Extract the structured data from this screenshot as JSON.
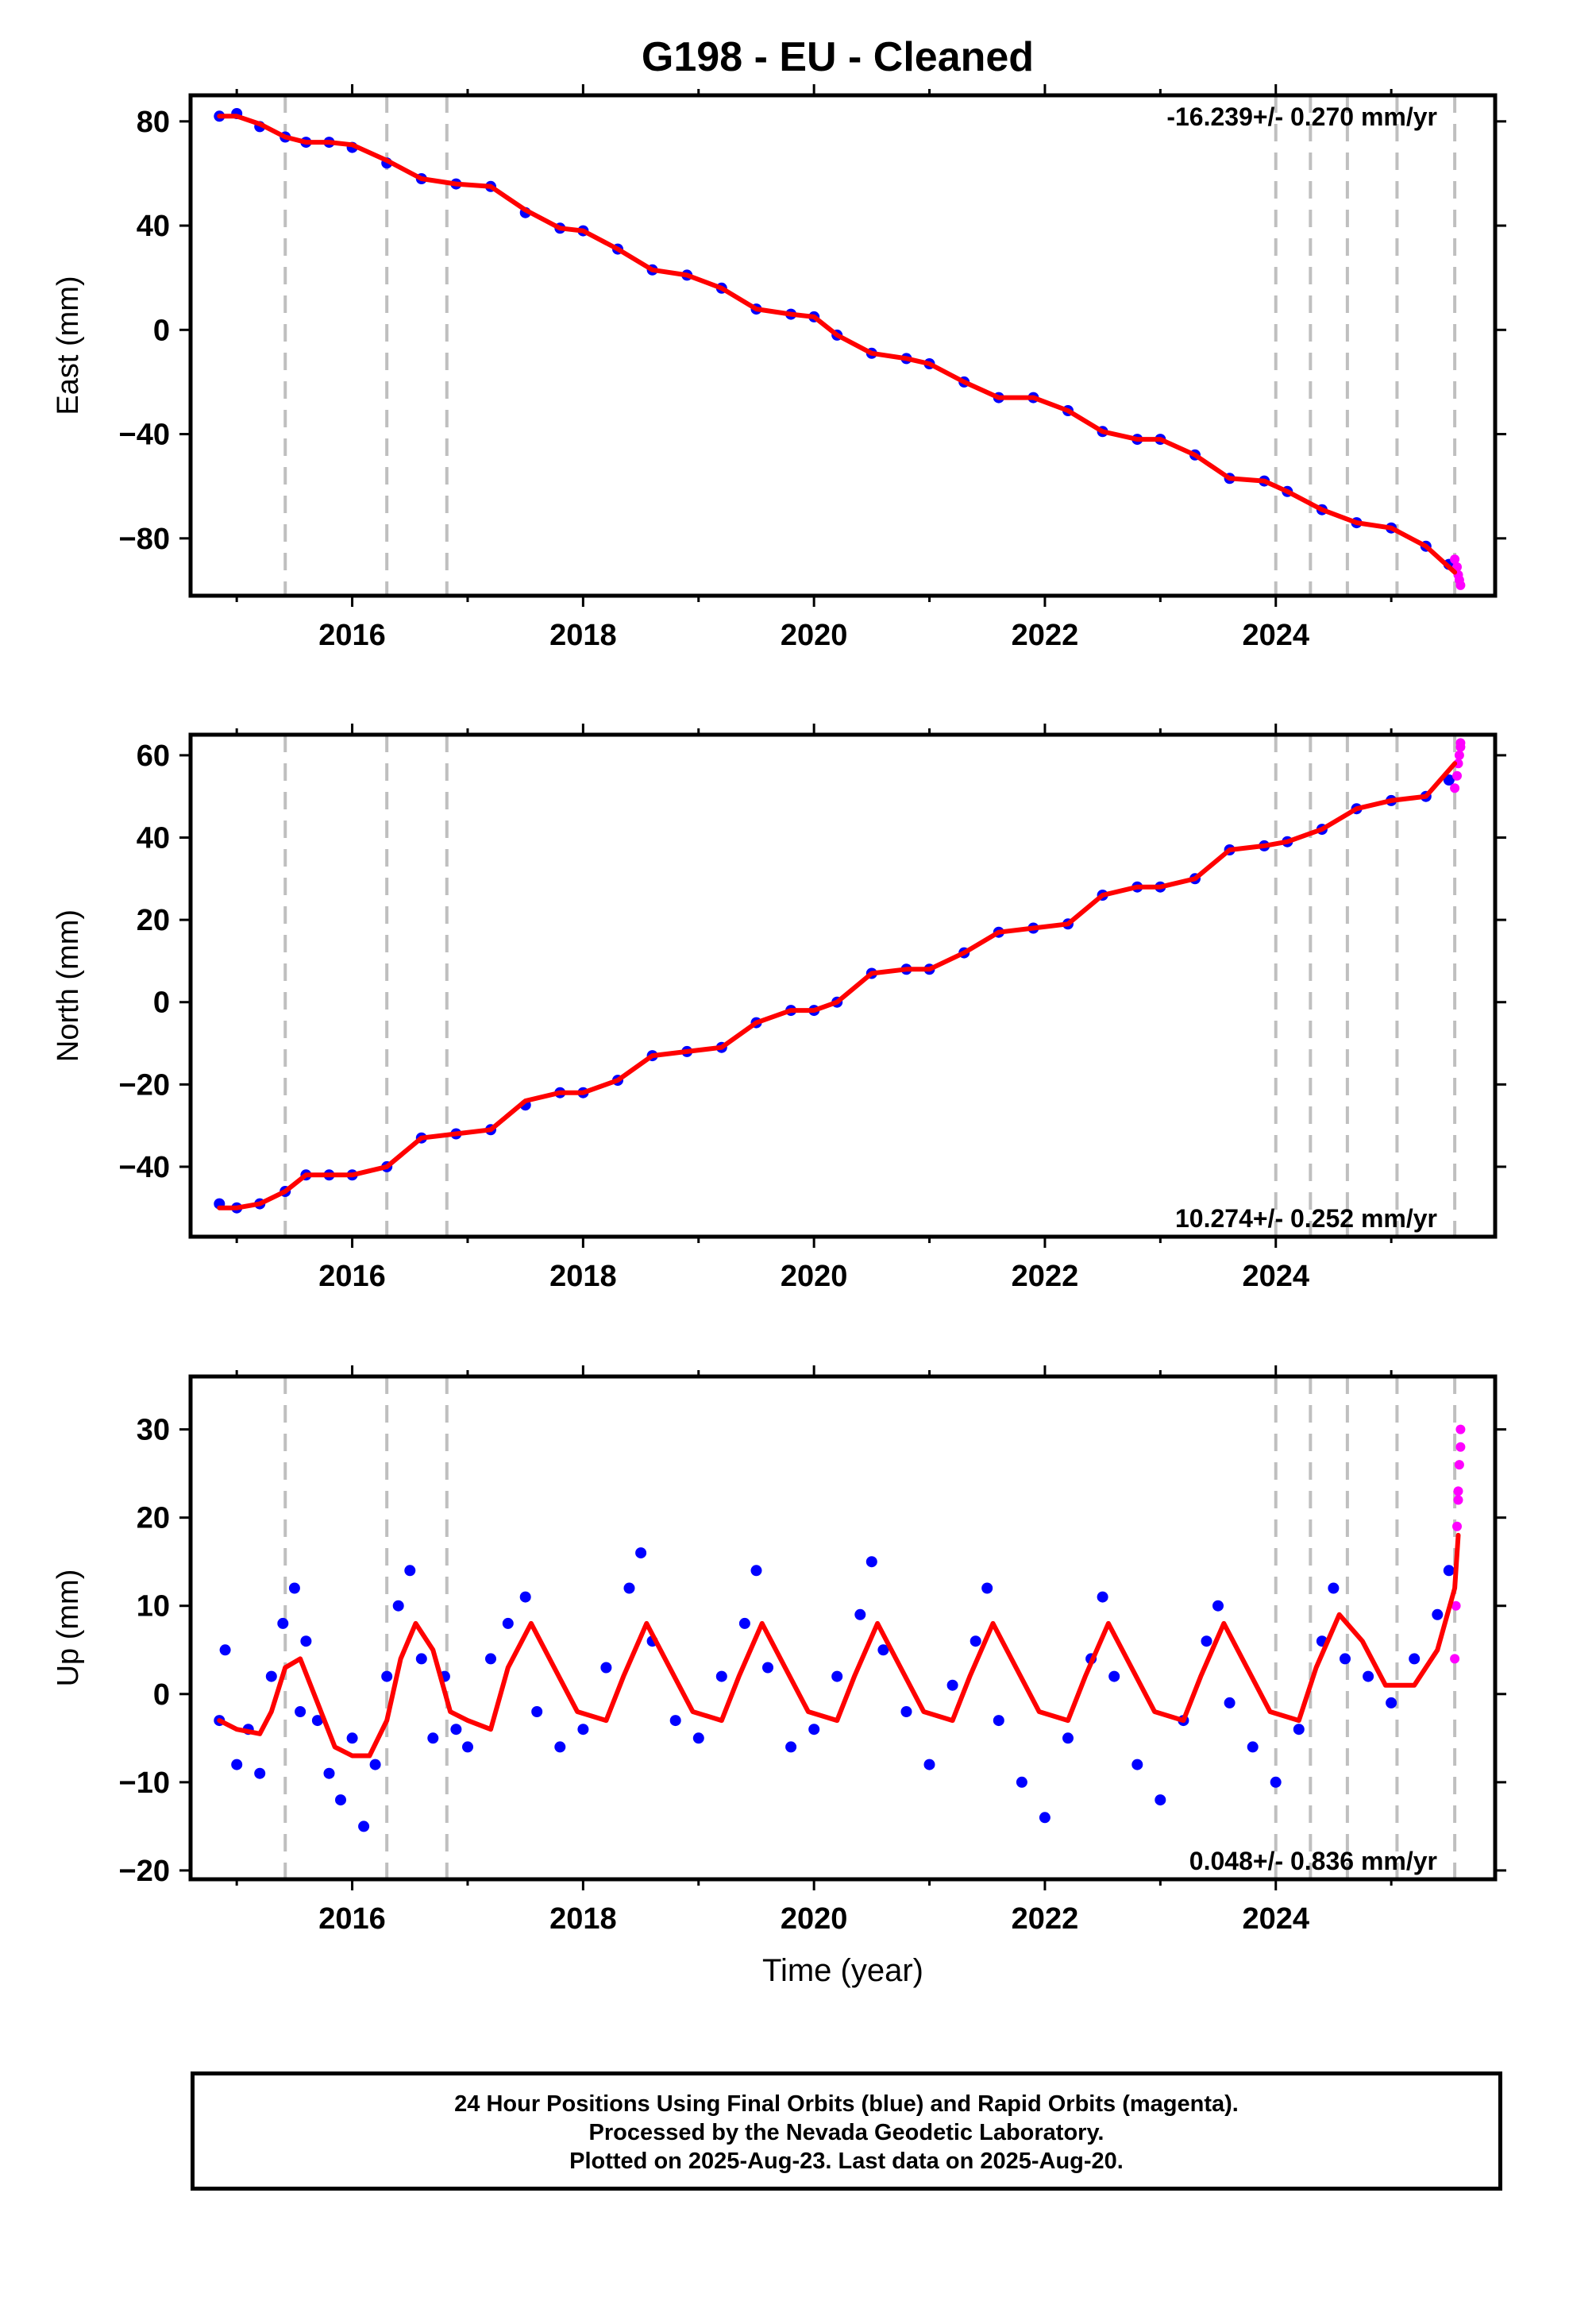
{
  "title": "G198  - EU - Cleaned",
  "footer": {
    "line1": "24 Hour Positions Using Final Orbits (blue) and Rapid Orbits (magenta).",
    "line2": "Processed by the Nevada Geodetic Laboratory.",
    "line3": "Plotted on 2025-Aug-23. Last data on 2025-Aug-20."
  },
  "colors": {
    "final_orbits": "#0000ff",
    "rapid_orbits": "#ff00ff",
    "model_fit": "#ff0000",
    "event_lines": "#bfbfbf"
  },
  "chart_data": [
    {
      "type": "scatter",
      "component": "East",
      "ylabel": "East (mm)",
      "xlabel": "",
      "xlim": [
        2014.6,
        2025.9
      ],
      "ylim": [
        -102,
        90
      ],
      "xticks": [
        2016,
        2018,
        2020,
        2022,
        2024
      ],
      "yticks": [
        80,
        40,
        0,
        -40,
        -80
      ],
      "rate_label": "-16.239+/- 0.270 mm/yr",
      "rate_position": "top-right",
      "event_lines": [
        2015.42,
        2016.3,
        2016.82,
        2024.0,
        2024.3,
        2024.62,
        2025.05,
        2025.55
      ],
      "series": [
        {
          "name": "Final Orbits (blue)",
          "color": "#0000ff",
          "style": "points",
          "x": [
            2014.85,
            2015.0,
            2015.2,
            2015.42,
            2015.6,
            2015.8,
            2016.0,
            2016.3,
            2016.6,
            2016.9,
            2017.2,
            2017.5,
            2017.8,
            2018.0,
            2018.3,
            2018.6,
            2018.9,
            2019.2,
            2019.5,
            2019.8,
            2020.0,
            2020.2,
            2020.5,
            2020.8,
            2021.0,
            2021.3,
            2021.6,
            2021.9,
            2022.2,
            2022.5,
            2022.8,
            2023.0,
            2023.3,
            2023.6,
            2023.9,
            2024.1,
            2024.4,
            2024.7,
            2025.0,
            2025.3,
            2025.5
          ],
          "y": [
            82,
            83,
            78,
            74,
            72,
            72,
            70,
            64,
            58,
            56,
            55,
            45,
            39,
            38,
            31,
            23,
            21,
            16,
            8,
            6,
            5,
            -2,
            -9,
            -11,
            -13,
            -20,
            -26,
            -26,
            -31,
            -39,
            -42,
            -42,
            -48,
            -57,
            -58,
            -62,
            -69,
            -74,
            -76,
            -83,
            -90
          ]
        },
        {
          "name": "Rapid Orbits (magenta)",
          "color": "#ff00ff",
          "style": "points",
          "x": [
            2025.55,
            2025.57,
            2025.58,
            2025.59,
            2025.6
          ],
          "y": [
            -88,
            -91,
            -94,
            -96,
            -98
          ]
        },
        {
          "name": "Model Fit",
          "color": "#ff0000",
          "style": "line",
          "x": [
            2014.85,
            2015.0,
            2015.2,
            2015.42,
            2015.6,
            2015.8,
            2016.0,
            2016.3,
            2016.6,
            2016.9,
            2017.2,
            2017.5,
            2017.8,
            2018.0,
            2018.3,
            2018.6,
            2018.9,
            2019.2,
            2019.5,
            2019.8,
            2020.0,
            2020.2,
            2020.5,
            2020.8,
            2021.0,
            2021.3,
            2021.6,
            2021.9,
            2022.2,
            2022.5,
            2022.8,
            2023.0,
            2023.3,
            2023.6,
            2023.9,
            2024.1,
            2024.4,
            2024.7,
            2025.0,
            2025.3,
            2025.55
          ],
          "y": [
            82,
            82,
            79,
            74,
            72,
            72,
            71,
            65,
            58,
            56,
            55,
            46,
            39,
            38,
            31,
            23,
            21,
            16,
            8,
            6,
            5,
            -2,
            -9,
            -11,
            -13,
            -20,
            -26,
            -26,
            -31,
            -39,
            -42,
            -42,
            -48,
            -57,
            -58,
            -62,
            -69,
            -74,
            -76,
            -83,
            -93
          ]
        }
      ]
    },
    {
      "type": "scatter",
      "component": "North",
      "ylabel": "North (mm)",
      "xlabel": "",
      "xlim": [
        2014.6,
        2025.9
      ],
      "ylim": [
        -57,
        65
      ],
      "xticks": [
        2016,
        2018,
        2020,
        2022,
        2024
      ],
      "yticks": [
        60,
        40,
        20,
        0,
        -20,
        -40
      ],
      "rate_label": "10.274+/- 0.252 mm/yr",
      "rate_position": "bottom-right",
      "event_lines": [
        2015.42,
        2016.3,
        2016.82,
        2024.0,
        2024.3,
        2024.62,
        2025.05,
        2025.55
      ],
      "series": [
        {
          "name": "Final Orbits (blue)",
          "color": "#0000ff",
          "style": "points",
          "x": [
            2014.85,
            2015.0,
            2015.2,
            2015.42,
            2015.6,
            2015.8,
            2016.0,
            2016.3,
            2016.6,
            2016.9,
            2017.2,
            2017.5,
            2017.8,
            2018.0,
            2018.3,
            2018.6,
            2018.9,
            2019.2,
            2019.5,
            2019.8,
            2020.0,
            2020.2,
            2020.5,
            2020.8,
            2021.0,
            2021.3,
            2021.6,
            2021.9,
            2022.2,
            2022.5,
            2022.8,
            2023.0,
            2023.3,
            2023.6,
            2023.9,
            2024.1,
            2024.4,
            2024.7,
            2025.0,
            2025.3,
            2025.5
          ],
          "y": [
            -49,
            -50,
            -49,
            -46,
            -42,
            -42,
            -42,
            -40,
            -33,
            -32,
            -31,
            -25,
            -22,
            -22,
            -19,
            -13,
            -12,
            -11,
            -5,
            -2,
            -2,
            0,
            7,
            8,
            8,
            12,
            17,
            18,
            19,
            26,
            28,
            28,
            30,
            37,
            38,
            39,
            42,
            47,
            49,
            50,
            54
          ]
        },
        {
          "name": "Rapid Orbits (magenta)",
          "color": "#ff00ff",
          "style": "points",
          "x": [
            2025.55,
            2025.57,
            2025.58,
            2025.59,
            2025.6,
            2025.6
          ],
          "y": [
            52,
            55,
            58,
            60,
            62,
            63
          ]
        },
        {
          "name": "Model Fit",
          "color": "#ff0000",
          "style": "line",
          "x": [
            2014.85,
            2015.0,
            2015.2,
            2015.42,
            2015.6,
            2015.8,
            2016.0,
            2016.3,
            2016.6,
            2016.9,
            2017.2,
            2017.5,
            2017.8,
            2018.0,
            2018.3,
            2018.6,
            2018.9,
            2019.2,
            2019.5,
            2019.8,
            2020.0,
            2020.2,
            2020.5,
            2020.8,
            2021.0,
            2021.3,
            2021.6,
            2021.9,
            2022.2,
            2022.5,
            2022.8,
            2023.0,
            2023.3,
            2023.6,
            2023.9,
            2024.1,
            2024.4,
            2024.7,
            2025.0,
            2025.3,
            2025.55
          ],
          "y": [
            -50,
            -50,
            -49,
            -46,
            -42,
            -42,
            -42,
            -40,
            -33,
            -32,
            -31,
            -24,
            -22,
            -22,
            -19,
            -13,
            -12,
            -11,
            -5,
            -2,
            -2,
            0,
            7,
            8,
            8,
            12,
            17,
            18,
            19,
            26,
            28,
            28,
            30,
            37,
            38,
            39,
            42,
            47,
            49,
            50,
            58
          ]
        }
      ]
    },
    {
      "type": "scatter",
      "component": "Up",
      "ylabel": "Up (mm)",
      "xlabel": "Time (year)",
      "xlim": [
        2014.6,
        2025.9
      ],
      "ylim": [
        -21,
        36
      ],
      "xticks": [
        2016,
        2018,
        2020,
        2022,
        2024
      ],
      "yticks": [
        30,
        20,
        10,
        0,
        -10,
        -20
      ],
      "rate_label": "0.048+/- 0.836 mm/yr",
      "rate_position": "bottom-right",
      "event_lines": [
        2015.42,
        2016.3,
        2016.82,
        2024.0,
        2024.3,
        2024.62,
        2025.05,
        2025.55
      ],
      "series": [
        {
          "name": "Final Orbits (blue)",
          "color": "#0000ff",
          "style": "points",
          "x": [
            2014.85,
            2014.9,
            2015.0,
            2015.1,
            2015.2,
            2015.3,
            2015.4,
            2015.5,
            2015.55,
            2015.6,
            2015.7,
            2015.8,
            2015.9,
            2016.0,
            2016.1,
            2016.2,
            2016.3,
            2016.4,
            2016.5,
            2016.6,
            2016.7,
            2016.8,
            2016.9,
            2017.0,
            2017.2,
            2017.35,
            2017.5,
            2017.6,
            2017.8,
            2018.0,
            2018.2,
            2018.4,
            2018.5,
            2018.6,
            2018.8,
            2019.0,
            2019.2,
            2019.4,
            2019.5,
            2019.6,
            2019.8,
            2020.0,
            2020.2,
            2020.4,
            2020.5,
            2020.6,
            2020.8,
            2021.0,
            2021.2,
            2021.4,
            2021.5,
            2021.6,
            2021.8,
            2022.0,
            2022.2,
            2022.4,
            2022.5,
            2022.6,
            2022.8,
            2023.0,
            2023.2,
            2023.4,
            2023.5,
            2023.6,
            2023.8,
            2024.0,
            2024.2,
            2024.4,
            2024.5,
            2024.6,
            2024.8,
            2025.0,
            2025.2,
            2025.4,
            2025.5
          ],
          "y": [
            -3,
            5,
            -8,
            -4,
            -9,
            2,
            8,
            12,
            -2,
            6,
            -3,
            -9,
            -12,
            -5,
            -15,
            -8,
            2,
            10,
            14,
            4,
            -5,
            2,
            -4,
            -6,
            4,
            8,
            11,
            -2,
            -6,
            -4,
            3,
            12,
            16,
            6,
            -3,
            -5,
            2,
            8,
            14,
            3,
            -6,
            -4,
            2,
            9,
            15,
            5,
            -2,
            -8,
            1,
            6,
            12,
            -3,
            -10,
            -14,
            -5,
            4,
            11,
            2,
            -8,
            -12,
            -3,
            6,
            10,
            -1,
            -6,
            -10,
            -4,
            6,
            12,
            4,
            2,
            -1,
            4,
            9,
            14
          ]
        },
        {
          "name": "Rapid Orbits (magenta)",
          "color": "#ff00ff",
          "style": "points",
          "x": [
            2025.55,
            2025.56,
            2025.57,
            2025.58,
            2025.58,
            2025.59,
            2025.6,
            2025.6
          ],
          "y": [
            4,
            10,
            19,
            22,
            23,
            26,
            28,
            30
          ]
        },
        {
          "name": "Model Fit",
          "color": "#ff0000",
          "style": "line",
          "x": [
            2014.85,
            2015.0,
            2015.2,
            2015.3,
            2015.42,
            2015.55,
            2015.7,
            2015.85,
            2016.0,
            2016.15,
            2016.3,
            2016.42,
            2016.55,
            2016.7,
            2016.85,
            2017.0,
            2017.2,
            2017.35,
            2017.55,
            2017.75,
            2017.95,
            2018.2,
            2018.35,
            2018.55,
            2018.75,
            2018.95,
            2019.2,
            2019.35,
            2019.55,
            2019.75,
            2019.95,
            2020.2,
            2020.35,
            2020.55,
            2020.75,
            2020.95,
            2021.2,
            2021.35,
            2021.55,
            2021.75,
            2021.95,
            2022.2,
            2022.35,
            2022.55,
            2022.75,
            2022.95,
            2023.2,
            2023.35,
            2023.55,
            2023.75,
            2023.95,
            2024.2,
            2024.35,
            2024.55,
            2024.75,
            2024.95,
            2025.2,
            2025.4,
            2025.55,
            2025.58
          ],
          "y": [
            -3,
            -4,
            -4.5,
            -2,
            3,
            4,
            -1,
            -6,
            -7,
            -7,
            -3,
            4,
            8,
            5,
            -2,
            -3,
            -4,
            3,
            8,
            3,
            -2,
            -3,
            2,
            8,
            3,
            -2,
            -3,
            2,
            8,
            3,
            -2,
            -3,
            2,
            8,
            3,
            -2,
            -3,
            2,
            8,
            3,
            -2,
            -3,
            2,
            8,
            3,
            -2,
            -3,
            2,
            8,
            3,
            -2,
            -3,
            3,
            9,
            6,
            1,
            1,
            5,
            12,
            18
          ]
        }
      ]
    }
  ]
}
